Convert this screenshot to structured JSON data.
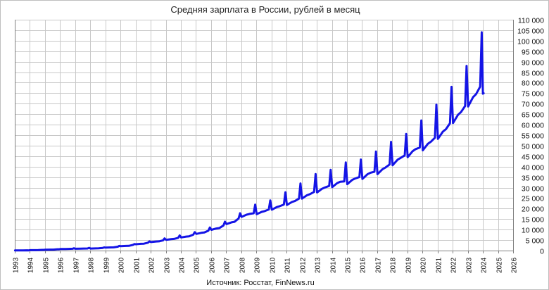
{
  "chart_data": {
    "type": "line",
    "title": "Средняя зарплата в России, рублей в месяц",
    "source": "Источник: Росстат, FinNews.ru",
    "xlabel": "",
    "ylabel": "",
    "grid": true,
    "xlim": [
      1993,
      2026
    ],
    "ylim": [
      0,
      110000
    ],
    "yticks": [
      0,
      5000,
      10000,
      15000,
      20000,
      25000,
      30000,
      35000,
      40000,
      45000,
      50000,
      55000,
      60000,
      65000,
      70000,
      75000,
      80000,
      85000,
      90000,
      95000,
      100000,
      105000,
      110000
    ],
    "ytick_labels": [
      "0",
      "5 000",
      "10 000",
      "15 000",
      "20 000",
      "25 000",
      "30 000",
      "35 000",
      "40 000",
      "45 000",
      "50 000",
      "55 000",
      "60 000",
      "65 000",
      "70 000",
      "75 000",
      "80 000",
      "85 000",
      "90 000",
      "95 000",
      "100 000",
      "105 000",
      "110 000"
    ],
    "xtick_labels": [
      "1993",
      "1994",
      "1995",
      "1996",
      "1997",
      "1998",
      "1999",
      "2000",
      "2001",
      "2002",
      "2003",
      "2004",
      "2005",
      "2006",
      "2007",
      "2008",
      "2009",
      "2010",
      "2011",
      "2012",
      "2013",
      "2014",
      "2015",
      "2016",
      "2017",
      "2018",
      "2019",
      "2020",
      "2021",
      "2022",
      "2023",
      "2024",
      "2025",
      "2026"
    ],
    "series": [
      {
        "color": "#1414e6",
        "annual_base": [
          [
            1993,
            60
          ],
          [
            1994,
            220
          ],
          [
            1995,
            480
          ],
          [
            1996,
            790
          ],
          [
            1997,
            950
          ],
          [
            1998,
            1050
          ],
          [
            1999,
            1520
          ],
          [
            2000,
            2220
          ],
          [
            2001,
            3240
          ],
          [
            2002,
            4360
          ],
          [
            2003,
            5500
          ],
          [
            2004,
            6740
          ],
          [
            2005,
            8550
          ],
          [
            2006,
            10630
          ],
          [
            2007,
            13590
          ],
          [
            2008,
            17290
          ],
          [
            2009,
            18640
          ],
          [
            2010,
            20950
          ],
          [
            2011,
            23370
          ],
          [
            2012,
            26630
          ],
          [
            2013,
            29790
          ],
          [
            2014,
            32490
          ],
          [
            2015,
            34030
          ],
          [
            2016,
            36710
          ],
          [
            2017,
            39170
          ],
          [
            2018,
            43720
          ],
          [
            2019,
            47870
          ],
          [
            2020,
            51340
          ],
          [
            2021,
            57240
          ],
          [
            2022,
            65340
          ],
          [
            2023,
            73800
          ],
          [
            2024,
            84000
          ]
        ],
        "december_peaks": [
          [
            1993,
            90
          ],
          [
            1994,
            350
          ],
          [
            1995,
            650
          ],
          [
            1996,
            1100
          ],
          [
            1997,
            1300
          ],
          [
            1998,
            1500
          ],
          [
            1999,
            2200
          ],
          [
            2000,
            3100
          ],
          [
            2001,
            4400
          ],
          [
            2002,
            5800
          ],
          [
            2003,
            7200
          ],
          [
            2004,
            8800
          ],
          [
            2005,
            11000
          ],
          [
            2006,
            13800
          ],
          [
            2007,
            17800
          ],
          [
            2008,
            21900
          ],
          [
            2009,
            23900
          ],
          [
            2010,
            27800
          ],
          [
            2011,
            32000
          ],
          [
            2012,
            36500
          ],
          [
            2013,
            38500
          ],
          [
            2014,
            42000
          ],
          [
            2015,
            43400
          ],
          [
            2016,
            47200
          ],
          [
            2017,
            51800
          ],
          [
            2018,
            55600
          ],
          [
            2019,
            62000
          ],
          [
            2020,
            69500
          ],
          [
            2021,
            78000
          ],
          [
            2022,
            88000
          ],
          [
            2023,
            104000
          ]
        ],
        "last_value": [
          2024.0,
          75000
        ]
      }
    ]
  }
}
